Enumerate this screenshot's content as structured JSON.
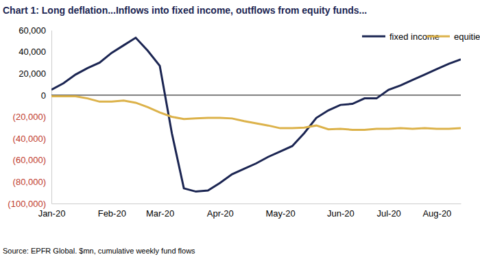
{
  "chart_data": {
    "type": "line",
    "title": "Chart 1: Long deflation...Inflows into fixed income, outflows from equity funds...",
    "source": "Source: EPFR Global. $mn, cumulative weekly fund flows",
    "categories": [
      "Jan-20",
      null,
      null,
      null,
      null,
      "Feb-20",
      null,
      null,
      null,
      "Mar-20",
      null,
      null,
      null,
      null,
      "Apr-20",
      null,
      null,
      null,
      null,
      "May-20",
      null,
      null,
      null,
      null,
      "Jun-20",
      null,
      null,
      null,
      "Jul-20",
      null,
      null,
      null,
      "Aug-20",
      null,
      null
    ],
    "series": [
      {
        "name": "fixed income",
        "color": "#1b2552",
        "values": [
          5000,
          11000,
          19000,
          25000,
          30000,
          39000,
          46000,
          53000,
          41000,
          27000,
          -35000,
          -86000,
          -89000,
          -88000,
          -81000,
          -73000,
          -68000,
          -63000,
          -57000,
          -52000,
          -47000,
          -35000,
          -21000,
          -14000,
          -9000,
          -8000,
          -3000,
          -3000,
          5000,
          9000,
          14000,
          19000,
          24000,
          29000,
          33000
        ]
      },
      {
        "name": "equities",
        "color": "#dcb24a",
        "values": [
          -1000,
          -1000,
          -1000,
          -3000,
          -6000,
          -6000,
          -5000,
          -7000,
          -11000,
          -16000,
          -20000,
          -22000,
          -21500,
          -21000,
          -21000,
          -21500,
          -24000,
          -26000,
          -28000,
          -30500,
          -30500,
          -30000,
          -28000,
          -31500,
          -31000,
          -32000,
          -32000,
          -31000,
          -31000,
          -30500,
          -31000,
          -30500,
          -31000,
          -31000,
          -30500
        ]
      }
    ],
    "ylim": [
      -100000,
      60000
    ],
    "yticks": [
      {
        "value": 60000,
        "label": "60,000"
      },
      {
        "value": 40000,
        "label": "40,000"
      },
      {
        "value": 20000,
        "label": "20,000"
      },
      0,
      {
        "value": -20000,
        "label": "(20,000)"
      },
      {
        "value": -40000,
        "label": "(40,000)"
      },
      {
        "value": -60000,
        "label": "(60,000)"
      },
      {
        "value": -80000,
        "label": "(80,000)"
      },
      {
        "value": -100000,
        "label": "(100,000)"
      }
    ],
    "grid": false,
    "legend": "upper right"
  }
}
